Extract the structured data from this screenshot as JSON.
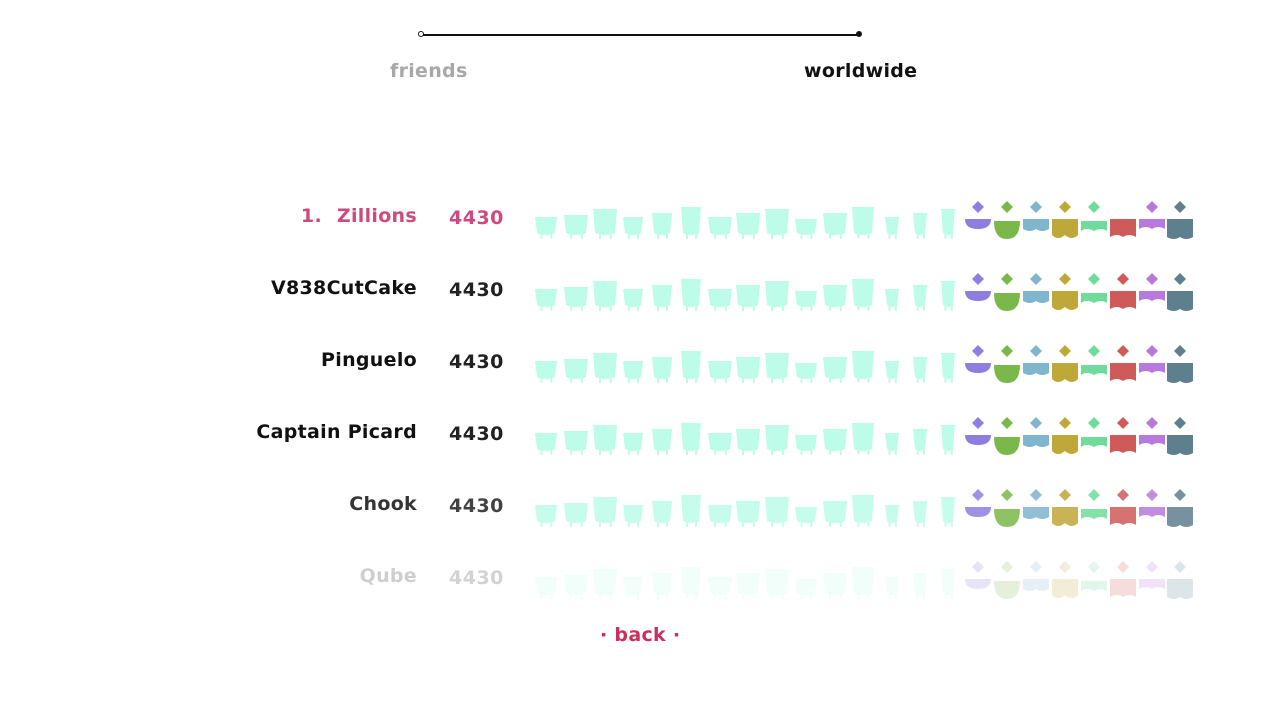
{
  "toggle": {
    "left_label": "friends",
    "right_label": "worldwide",
    "selected": "worldwide"
  },
  "leaderboard": [
    {
      "rank": "1.",
      "name": "Zillions",
      "score": "4430",
      "highlight": true
    },
    {
      "name": "V838CutCake",
      "score": "4430"
    },
    {
      "name": "Pinguelo",
      "score": "4430"
    },
    {
      "name": "Captain Picard",
      "score": "4430"
    },
    {
      "name": "Chook",
      "score": "4430"
    },
    {
      "name": "Qube",
      "score": "4430"
    }
  ],
  "row_opacity": [
    1,
    1,
    1,
    1,
    0.85,
    0.2
  ],
  "back_label": "· back ·",
  "colors": {
    "accent": "#cc4a7e",
    "back": "#cc2f5e",
    "mint": "#bdfce8",
    "active_text": "#111111",
    "inactive_text": "#a8a8a8",
    "gem_colors": [
      "#8f7ee0",
      "#7bb84a",
      "#7fb5cf",
      "#bfa83a",
      "#6fdc9d",
      "#cf5a5a",
      "#b879dc",
      "#5e7f8e"
    ]
  },
  "icons": {
    "piece": "glass-piece-icon",
    "gem": "diamond-gem-icon",
    "toggle": "slider-track-icon"
  }
}
